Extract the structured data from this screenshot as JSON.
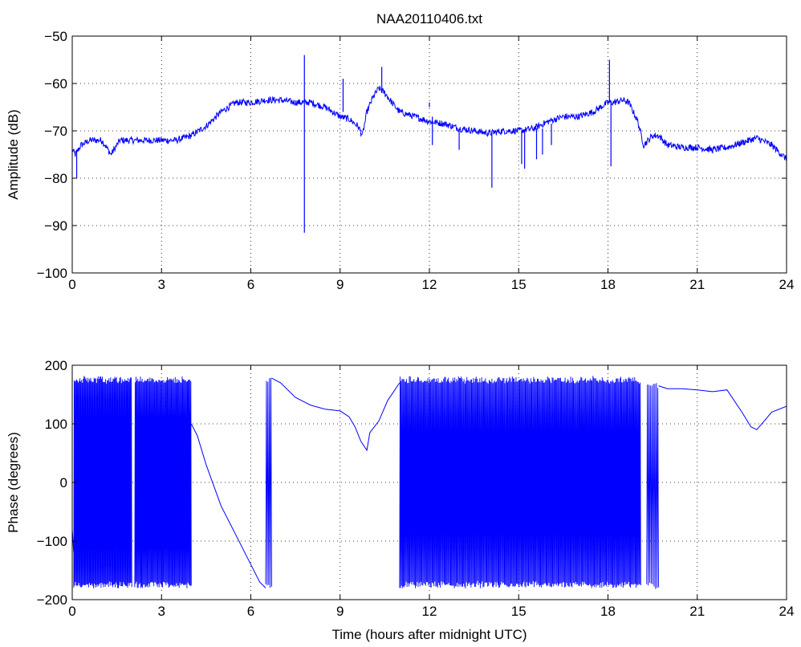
{
  "colors": {
    "series": "#0000ff",
    "axis": "#000000",
    "grid": "#000000",
    "background": "#ffffff"
  },
  "chart_data": [
    {
      "type": "line",
      "title": "NAA20110406.txt",
      "xlabel": "",
      "ylabel": "Amplitude (dB)",
      "xlim": [
        0,
        24
      ],
      "ylim": [
        -100,
        -50
      ],
      "xticks": [
        0,
        3,
        6,
        9,
        12,
        15,
        18,
        21,
        24
      ],
      "xtick_labels": [
        "0",
        "3",
        "6",
        "9",
        "12",
        "15",
        "18",
        "21",
        "24"
      ],
      "yticks": [
        -100,
        -90,
        -80,
        -70,
        -60,
        -50
      ],
      "ytick_labels": [
        "−100",
        "−90",
        "−80",
        "−70",
        "−60",
        "−50"
      ],
      "grid": true,
      "noise_db": 0.7,
      "series": [
        {
          "x": [
            0,
            0.1,
            0.3,
            0.6,
            1.0,
            1.3,
            1.6,
            2.0,
            2.5,
            3.0,
            3.5,
            4.0,
            4.5,
            5.0,
            5.5,
            6.0,
            6.5,
            7.0,
            7.5,
            8.0,
            8.5,
            9.0,
            9.3,
            9.6,
            9.75,
            9.9,
            10.1,
            10.3,
            10.5,
            10.8,
            11.0,
            11.5,
            12.0,
            12.5,
            13.0,
            13.5,
            14.0,
            14.5,
            15.0,
            15.5,
            16.0,
            16.5,
            17.0,
            17.5,
            18.0,
            18.2,
            18.5,
            18.7,
            19.0,
            19.2,
            19.5,
            19.7,
            20.0,
            20.5,
            21.0,
            21.5,
            22.0,
            22.5,
            23.0,
            23.5,
            24.0
          ],
          "y": [
            -74,
            -75,
            -73,
            -72,
            -72,
            -75,
            -72,
            -72,
            -72,
            -72,
            -72,
            -71,
            -69,
            -66,
            -64,
            -64,
            -63.5,
            -63.5,
            -64,
            -64,
            -65,
            -67,
            -67.5,
            -69,
            -71,
            -66,
            -63,
            -61,
            -62,
            -64.5,
            -66,
            -67,
            -68,
            -68.5,
            -69.5,
            -70,
            -70.5,
            -70,
            -70,
            -69.5,
            -68,
            -67,
            -67,
            -66,
            -64,
            -64,
            -63.5,
            -64,
            -68,
            -73,
            -71,
            -71,
            -73,
            -73.5,
            -73.5,
            -74,
            -73.5,
            -72.5,
            -71.5,
            -73,
            -76
          ]
        }
      ],
      "spikes": [
        {
          "x": 7.8,
          "y_from": -63.5,
          "y_to": -91.5
        },
        {
          "x": 7.8,
          "y_from": -63.5,
          "y_to": -54
        },
        {
          "x": 9.1,
          "y_from": -66,
          "y_to": -59
        },
        {
          "x": 10.4,
          "y_from": -62,
          "y_to": -56.5
        },
        {
          "x": 12.0,
          "y_from": -65,
          "y_to": -64
        },
        {
          "x": 12.1,
          "y_from": -67,
          "y_to": -73
        },
        {
          "x": 13.0,
          "y_from": -70,
          "y_to": -74
        },
        {
          "x": 14.1,
          "y_from": -70,
          "y_to": -82
        },
        {
          "x": 15.1,
          "y_from": -70,
          "y_to": -77
        },
        {
          "x": 15.2,
          "y_from": -70,
          "y_to": -78
        },
        {
          "x": 15.6,
          "y_from": -69.5,
          "y_to": -76
        },
        {
          "x": 15.8,
          "y_from": -69.5,
          "y_to": -75
        },
        {
          "x": 16.1,
          "y_from": -68.5,
          "y_to": -73
        },
        {
          "x": 18.05,
          "y_from": -64,
          "y_to": -55
        },
        {
          "x": 18.1,
          "y_from": -64,
          "y_to": -77.5
        },
        {
          "x": 0.15,
          "y_from": -74,
          "y_to": -80
        }
      ]
    },
    {
      "type": "line",
      "title": "",
      "xlabel": "Time (hours after midnight UTC)",
      "ylabel": "Phase (degrees)",
      "xlim": [
        0,
        24
      ],
      "ylim": [
        -200,
        200
      ],
      "xticks": [
        0,
        3,
        6,
        9,
        12,
        15,
        18,
        21,
        24
      ],
      "xtick_labels": [
        "0",
        "3",
        "6",
        "9",
        "12",
        "15",
        "18",
        "21",
        "24"
      ],
      "yticks": [
        -200,
        -100,
        0,
        100,
        200
      ],
      "ytick_labels": [
        "−200",
        "−100",
        "0",
        "100",
        "200"
      ],
      "grid": true,
      "wrap_segments": [
        {
          "x_start": 0.05,
          "x_end": 2.0,
          "lo": -180,
          "hi": 180,
          "cycles": 70
        },
        {
          "x_start": 2.1,
          "x_end": 4.0,
          "lo": -180,
          "hi": 180,
          "cycles": 65
        },
        {
          "x_start": 6.5,
          "x_end": 6.7,
          "lo": -180,
          "hi": 180,
          "cycles": 4
        },
        {
          "x_start": 11.0,
          "x_end": 19.1,
          "lo": -180,
          "hi": 180,
          "cycles": 260
        },
        {
          "x_start": 19.3,
          "x_end": 19.7,
          "lo": -180,
          "hi": 170,
          "cycles": 8
        }
      ],
      "series": [
        {
          "x": [
            0.0,
            0.05
          ],
          "y": [
            -80,
            -120
          ]
        },
        {
          "x": [
            4.0,
            4.2,
            4.5,
            5.0,
            5.5,
            6.0,
            6.3,
            6.5
          ],
          "y": [
            100,
            80,
            30,
            -40,
            -90,
            -140,
            -170,
            -180
          ]
        },
        {
          "x": [
            6.7,
            7.0,
            7.5,
            8.0,
            8.5,
            9.0,
            9.3,
            9.5,
            9.7,
            9.9,
            10.0,
            10.3,
            10.6,
            11.0
          ],
          "y": [
            178,
            170,
            145,
            132,
            125,
            122,
            112,
            95,
            70,
            55,
            85,
            105,
            140,
            170
          ]
        },
        {
          "x": [
            19.7,
            20.0,
            20.5,
            21.0,
            21.5,
            22.0,
            22.5,
            22.8,
            23.0,
            23.5,
            24.0
          ],
          "y": [
            165,
            160,
            160,
            158,
            155,
            158,
            120,
            95,
            90,
            120,
            130
          ]
        }
      ]
    }
  ]
}
